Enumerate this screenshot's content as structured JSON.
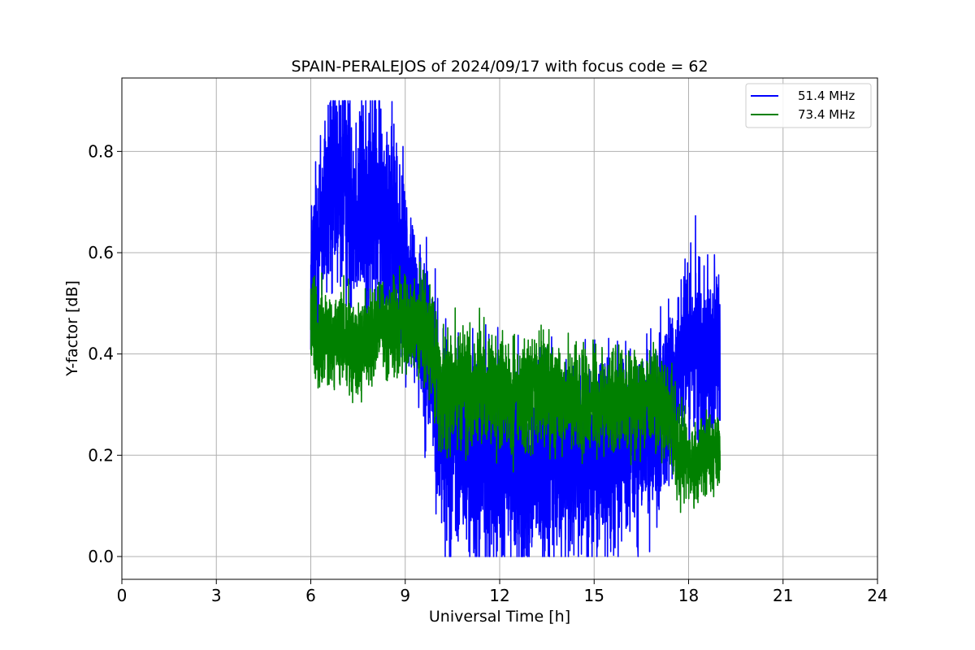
{
  "chart_data": {
    "type": "line",
    "title": "SPAIN-PERALEJOS of 2024/09/17 with focus code = 62",
    "xlabel": "Universal Time [h]",
    "ylabel": "Y-factor [dB]",
    "xlim": [
      0,
      24
    ],
    "ylim": [
      -0.045,
      0.945
    ],
    "xticks": [
      0,
      3,
      6,
      9,
      12,
      15,
      18,
      21,
      24
    ],
    "xtick_labels": [
      "0",
      "3",
      "6",
      "9",
      "12",
      "15",
      "18",
      "21",
      "24"
    ],
    "yticks": [
      0.0,
      0.2,
      0.4,
      0.6,
      0.8
    ],
    "ytick_labels": [
      "0.0",
      "0.2",
      "0.4",
      "0.6",
      "0.8"
    ],
    "grid": true,
    "legend_position": "top-right",
    "series": [
      {
        "name": "51.4 MHz",
        "color": "#0000ff",
        "x": [
          6.0,
          6.2,
          6.4,
          6.6,
          6.8,
          7.0,
          7.2,
          7.4,
          7.6,
          7.8,
          8.0,
          8.2,
          8.4,
          8.6,
          8.8,
          9.0,
          9.2,
          9.4,
          9.6,
          9.8,
          10.0,
          10.2,
          10.4,
          10.6,
          10.8,
          11.0,
          11.5,
          12.0,
          12.5,
          13.0,
          13.5,
          14.0,
          14.5,
          15.0,
          15.5,
          16.0,
          16.5,
          17.0,
          17.4,
          17.6,
          17.8,
          18.0,
          18.2,
          18.4,
          18.6,
          18.8,
          19.0
        ],
        "y": [
          0.55,
          0.62,
          0.68,
          0.72,
          0.73,
          0.74,
          0.72,
          0.7,
          0.69,
          0.7,
          0.69,
          0.7,
          0.68,
          0.65,
          0.6,
          0.57,
          0.52,
          0.48,
          0.44,
          0.4,
          0.3,
          0.25,
          0.22,
          0.21,
          0.2,
          0.2,
          0.19,
          0.19,
          0.18,
          0.17,
          0.18,
          0.19,
          0.19,
          0.2,
          0.21,
          0.21,
          0.22,
          0.24,
          0.3,
          0.38,
          0.4,
          0.4,
          0.41,
          0.4,
          0.4,
          0.4,
          0.39
        ],
        "band": [
          0.11,
          0.13,
          0.15,
          0.16,
          0.16,
          0.16,
          0.15,
          0.15,
          0.15,
          0.16,
          0.16,
          0.16,
          0.15,
          0.15,
          0.14,
          0.13,
          0.13,
          0.12,
          0.13,
          0.14,
          0.16,
          0.15,
          0.14,
          0.14,
          0.15,
          0.15,
          0.15,
          0.15,
          0.15,
          0.15,
          0.15,
          0.14,
          0.14,
          0.14,
          0.14,
          0.13,
          0.13,
          0.13,
          0.14,
          0.13,
          0.13,
          0.13,
          0.13,
          0.13,
          0.13,
          0.13,
          0.12
        ],
        "range": [
          0.0,
          0.9
        ]
      },
      {
        "name": "73.4 MHz",
        "color": "#008000",
        "x": [
          6.0,
          6.2,
          6.4,
          6.6,
          6.8,
          7.0,
          7.2,
          7.4,
          7.6,
          7.8,
          8.0,
          8.2,
          8.4,
          8.6,
          8.8,
          9.0,
          9.2,
          9.4,
          9.6,
          9.8,
          10.0,
          10.2,
          10.4,
          10.6,
          10.8,
          11.0,
          11.5,
          12.0,
          12.5,
          13.0,
          13.5,
          14.0,
          14.5,
          15.0,
          15.5,
          16.0,
          16.5,
          17.0,
          17.4,
          17.6,
          17.8,
          18.0,
          18.2,
          18.4,
          18.6,
          18.8,
          19.0
        ],
        "y": [
          0.46,
          0.45,
          0.43,
          0.42,
          0.42,
          0.43,
          0.43,
          0.42,
          0.42,
          0.43,
          0.44,
          0.45,
          0.45,
          0.46,
          0.46,
          0.46,
          0.45,
          0.45,
          0.44,
          0.42,
          0.36,
          0.33,
          0.33,
          0.33,
          0.33,
          0.33,
          0.33,
          0.32,
          0.32,
          0.32,
          0.32,
          0.31,
          0.31,
          0.31,
          0.31,
          0.31,
          0.31,
          0.3,
          0.28,
          0.24,
          0.19,
          0.18,
          0.19,
          0.2,
          0.2,
          0.2,
          0.2
        ],
        "band": [
          0.07,
          0.07,
          0.07,
          0.07,
          0.07,
          0.07,
          0.07,
          0.07,
          0.07,
          0.07,
          0.07,
          0.07,
          0.07,
          0.07,
          0.07,
          0.07,
          0.07,
          0.07,
          0.07,
          0.07,
          0.08,
          0.08,
          0.08,
          0.08,
          0.08,
          0.08,
          0.08,
          0.08,
          0.08,
          0.08,
          0.08,
          0.07,
          0.07,
          0.07,
          0.07,
          0.07,
          0.07,
          0.07,
          0.07,
          0.07,
          0.07,
          0.06,
          0.06,
          0.06,
          0.06,
          0.06,
          0.06
        ],
        "range": [
          0.0,
          0.6
        ]
      }
    ]
  }
}
